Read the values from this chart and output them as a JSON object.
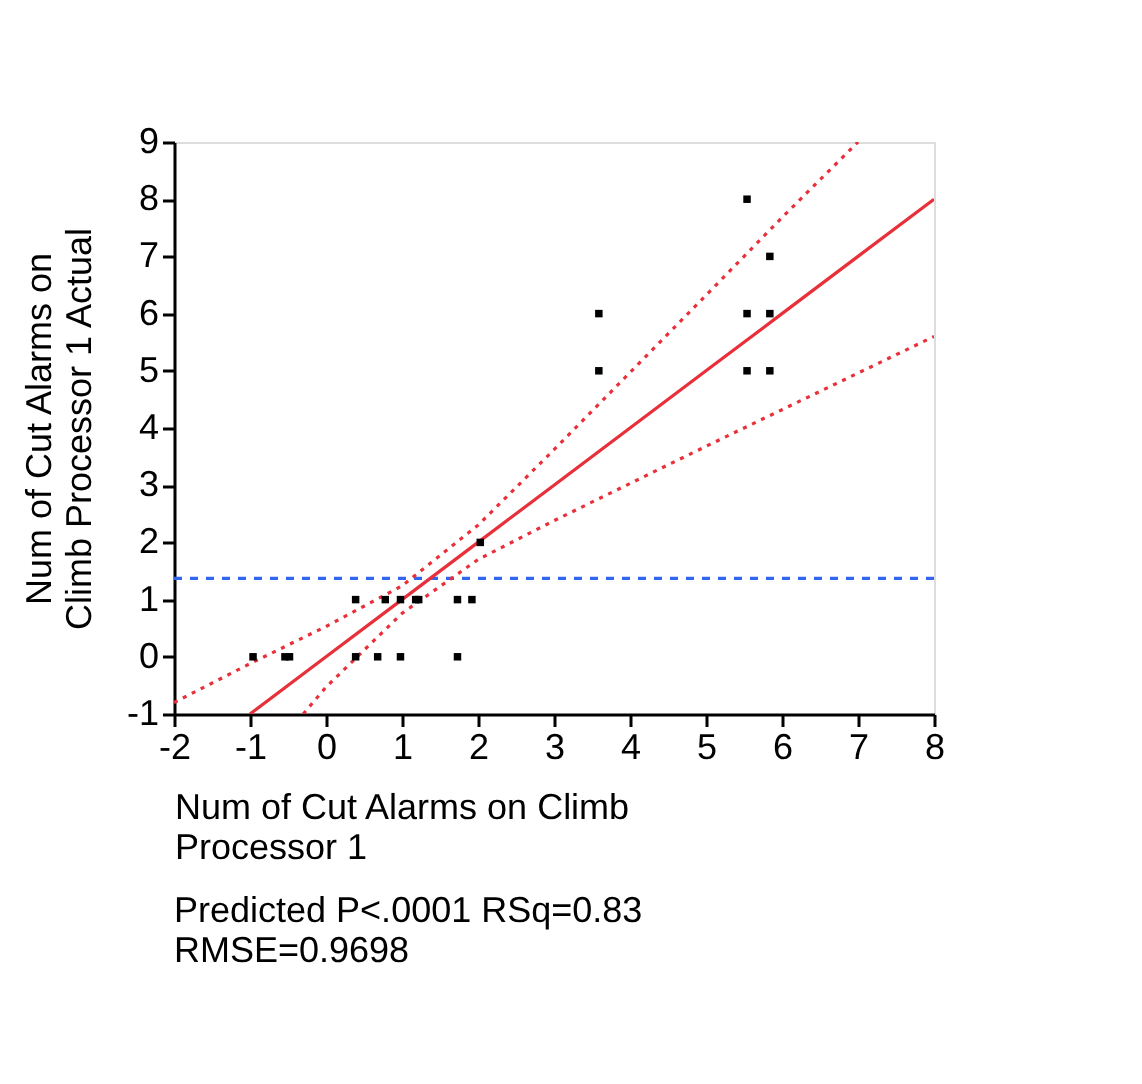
{
  "chart_data": {
    "type": "scatter",
    "xlabel": "Num of Cut Alarms on Climb Processor 1",
    "ylabel": "Num of Cut Alarms on Climb Processor 1 Actual",
    "annotations": [
      "Predicted P<.0001 RSq=0.83",
      "RMSE=0.9698"
    ],
    "series": [
      {
        "color": "#000000",
        "marker": "square",
        "x": [
          -0.96,
          -0.54,
          -0.48,
          0.39,
          0.68,
          0.98,
          1.73,
          0.39,
          0.78,
          0.98,
          1.18,
          1.22,
          1.73,
          1.92,
          2.03,
          3.59,
          3.59,
          5.54,
          5.54,
          5.54,
          5.84,
          5.84,
          5.84
        ],
        "values": [
          0,
          0,
          0,
          0,
          0,
          0,
          0,
          1,
          1,
          1,
          1,
          1,
          1,
          1,
          2,
          6,
          5,
          8,
          6,
          5,
          7,
          6,
          5
        ]
      },
      {
        "type": "line",
        "color": "#e8303a",
        "line_style": "solid",
        "x": [
          -1,
          0,
          1,
          2,
          3,
          4,
          5,
          6,
          7,
          8
        ],
        "values": [
          -1,
          0,
          1,
          2,
          3,
          4,
          5,
          6,
          7,
          8
        ]
      },
      {
        "type": "line",
        "color": "#e8303a",
        "line_style": "dotted",
        "x": [
          -2,
          -1,
          0,
          1,
          2,
          3,
          4,
          5,
          6,
          7
        ],
        "values": [
          -0.8,
          -0.12,
          0.53,
          1.24,
          2.3,
          3.62,
          4.97,
          6.32,
          7.68,
          9.0
        ]
      },
      {
        "type": "line",
        "color": "#e8303a",
        "line_style": "dotted",
        "x": [
          -0.3,
          0,
          1,
          2,
          3,
          4,
          5,
          6,
          7,
          8
        ],
        "values": [
          -1.0,
          -0.53,
          0.76,
          1.7,
          2.38,
          3.03,
          3.68,
          4.32,
          4.96,
          5.6
        ]
      }
    ],
    "ref_lines": [
      {
        "axis": "y",
        "value": 1.37,
        "color": "#3366ee",
        "line_style": "dashed"
      }
    ],
    "xlim": [
      -2,
      8
    ],
    "xticks": [
      -2,
      -1,
      0,
      1,
      2,
      3,
      4,
      5,
      6,
      7,
      8
    ],
    "ylim": [
      -1,
      9
    ],
    "yticks": [
      -1,
      0,
      1,
      2,
      3,
      4,
      5,
      6,
      7,
      8,
      9
    ],
    "grid": false
  }
}
